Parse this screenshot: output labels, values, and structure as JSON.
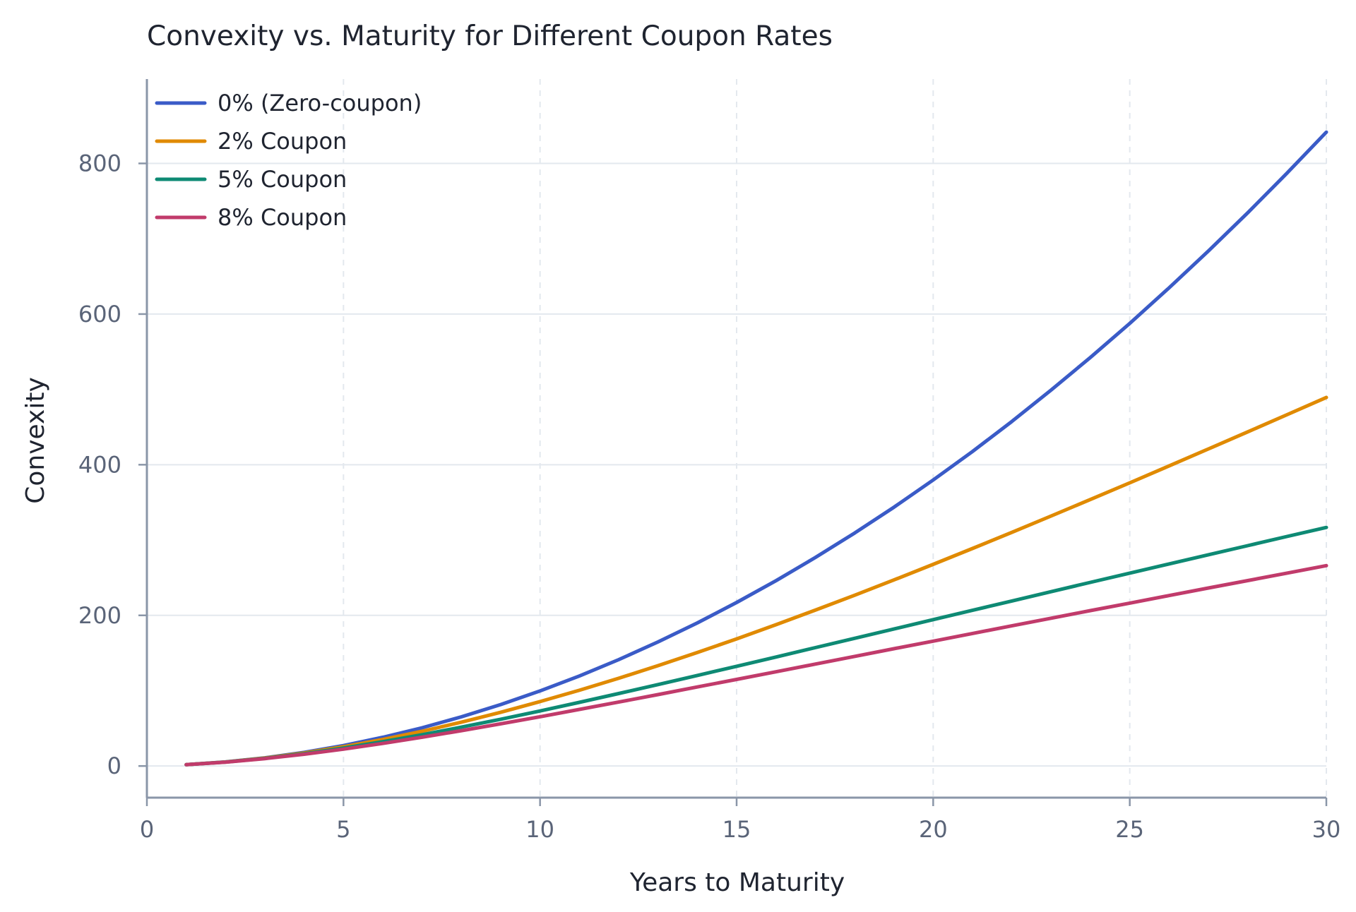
{
  "chart_data": {
    "type": "line",
    "title": "Convexity vs. Maturity for Different Coupon Rates",
    "xlabel": "Years to Maturity",
    "ylabel": "Convexity",
    "xlim": [
      0,
      30
    ],
    "ylim": [
      -42,
      912
    ],
    "xticks": [
      0,
      5,
      10,
      15,
      20,
      25,
      30
    ],
    "yticks": [
      0,
      200,
      400,
      600,
      800
    ],
    "grid": true,
    "legend_position": "top-left",
    "x": [
      1,
      2,
      3,
      4,
      5,
      6,
      7,
      8,
      9,
      10,
      11,
      12,
      13,
      14,
      15,
      16,
      17,
      18,
      19,
      20,
      21,
      22,
      23,
      24,
      25,
      26,
      27,
      28,
      29,
      30
    ],
    "series": [
      {
        "name": "0% (Zero-coupon)",
        "color": "#3a5bc7",
        "values": [
          1.8,
          5.4,
          10.9,
          18.1,
          27.2,
          38.1,
          50.8,
          65.3,
          81.6,
          99.7,
          119.5,
          141.2,
          164.7,
          189.9,
          217.1,
          246.0,
          276.7,
          309.2,
          343.5,
          379.7,
          417.6,
          457.4,
          499.1,
          542.5,
          587.7,
          634.8,
          683.7,
          734.5,
          787.1,
          841.5
        ]
      },
      {
        "name": "2% Coupon",
        "color": "#e08a00",
        "values": [
          1.8,
          5.3,
          10.6,
          17.3,
          25.6,
          35.2,
          46.1,
          58.2,
          71.3,
          85.5,
          100.5,
          116.5,
          133.2,
          150.7,
          168.8,
          187.6,
          206.9,
          226.7,
          247.0,
          267.7,
          288.8,
          310.2,
          331.9,
          353.8,
          376.0,
          398.4,
          420.9,
          443.6,
          466.4,
          489.3
        ]
      },
      {
        "name": "5% Coupon",
        "color": "#0e8a74",
        "values": [
          1.8,
          5.2,
          10.1,
          16.4,
          23.9,
          32.3,
          41.6,
          51.6,
          62.1,
          73.1,
          84.5,
          96.2,
          108.1,
          120.2,
          132.4,
          144.7,
          157.1,
          169.5,
          181.9,
          194.3,
          206.7,
          219.1,
          231.5,
          243.8,
          256.1,
          268.3,
          280.5,
          292.6,
          304.7,
          316.7
        ]
      },
      {
        "name": "8% Coupon",
        "color": "#c13b6b",
        "values": [
          1.8,
          5.1,
          9.8,
          15.6,
          22.4,
          30.0,
          38.2,
          46.9,
          56.0,
          65.4,
          75.1,
          84.9,
          94.8,
          104.9,
          115.0,
          125.1,
          135.3,
          145.5,
          155.7,
          165.8,
          176.0,
          186.1,
          196.2,
          206.3,
          216.3,
          226.3,
          236.3,
          246.2,
          256.1,
          266.0
        ]
      }
    ]
  }
}
